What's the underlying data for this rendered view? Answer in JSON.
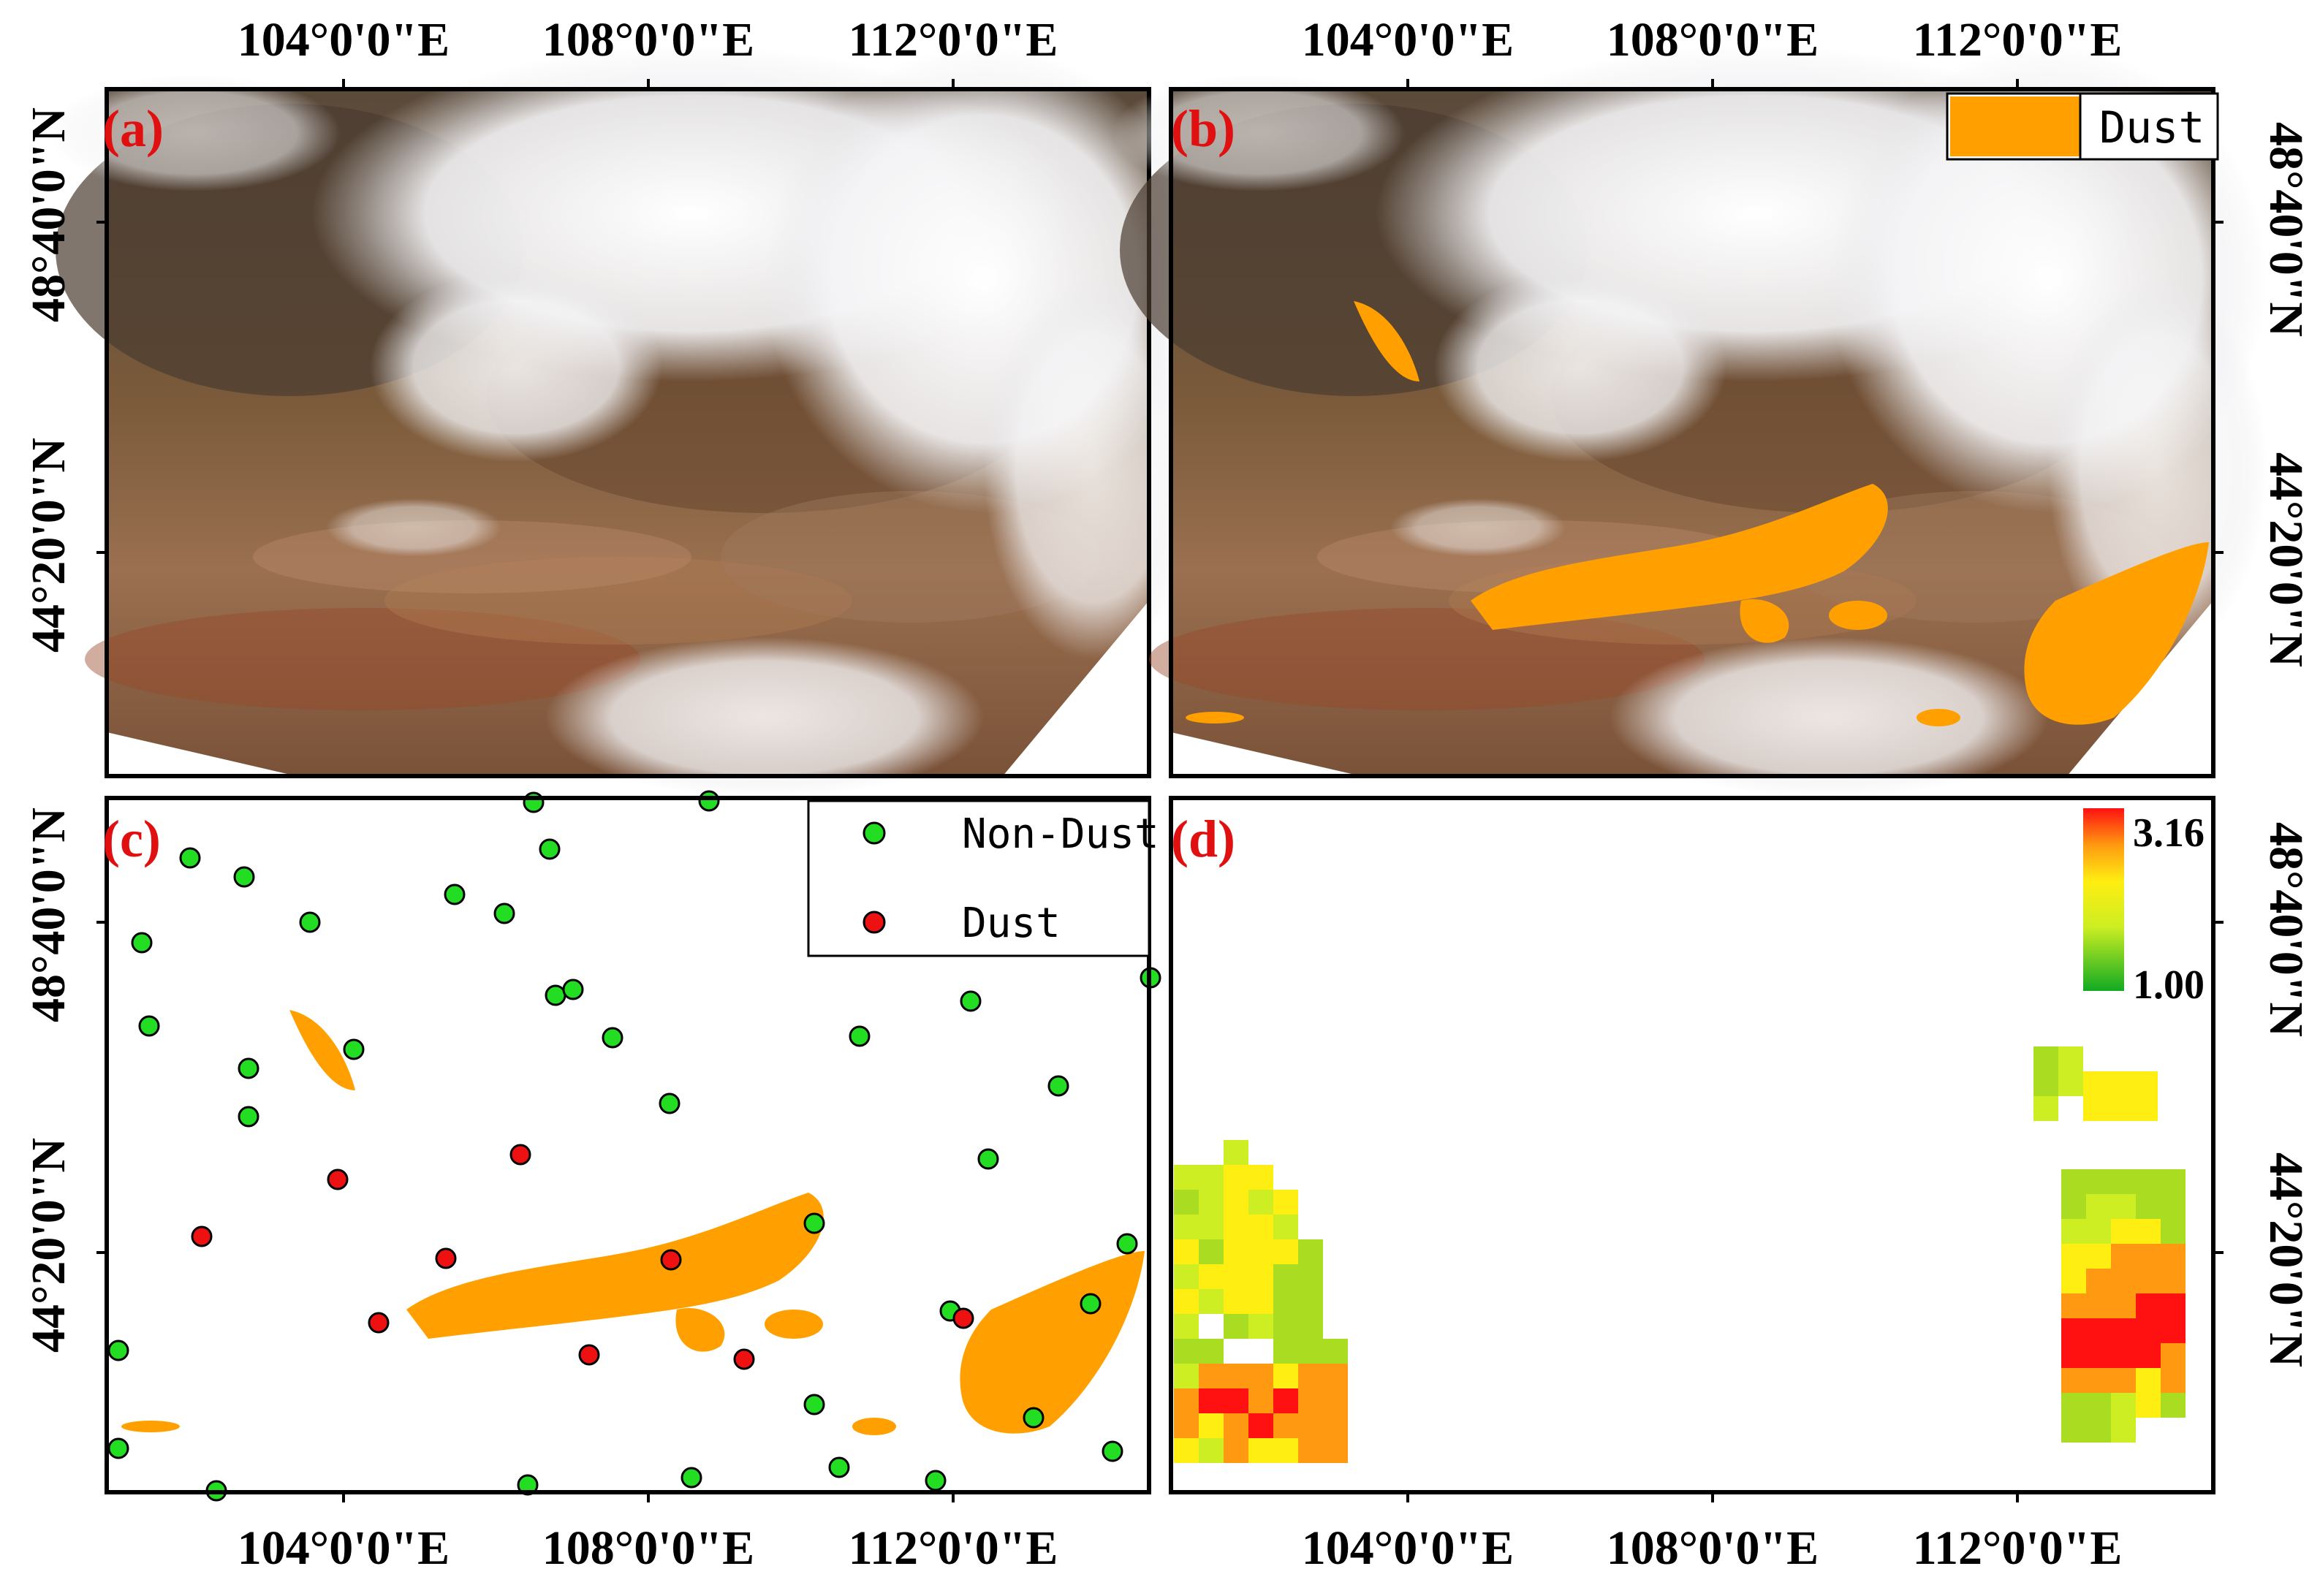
{
  "figure": {
    "lon_ticks": [
      "104°0'0\"E",
      "108°0'0\"E",
      "112°0'0\"E"
    ],
    "lat_ticks": [
      "48°40'0\"N",
      "44°20'0\"N",
      "48°40'0\"N",
      "44°20'0\"N"
    ],
    "lon_tick_values_deg": [
      104,
      108,
      112
    ],
    "lat_tick_values_deg": [
      48.667,
      44.333
    ]
  },
  "panels": {
    "a": {
      "label": "(a)",
      "content": "true-color satellite image"
    },
    "b": {
      "label": "(b)",
      "legend": {
        "swatch_color": "#ffa000",
        "label": "Dust"
      }
    },
    "c": {
      "label": "(c)",
      "legend": [
        {
          "label": "Non-Dust",
          "color": "#22dd22"
        },
        {
          "label": "Dust",
          "color": "#ee1111"
        }
      ]
    },
    "d": {
      "label": "(d)",
      "colorbar": {
        "max_label": "3.16",
        "min_label": "1.00",
        "min": 1.0,
        "max": 3.16,
        "colors": [
          "#11aa22",
          "#ccee22",
          "#ffee11",
          "#ff9911",
          "#ff1111"
        ]
      }
    }
  },
  "colors": {
    "dust_mask": "#ffa000",
    "panel_label": "#e01010",
    "non_dust_station": "#22dd22",
    "dust_station": "#ee1111"
  }
}
